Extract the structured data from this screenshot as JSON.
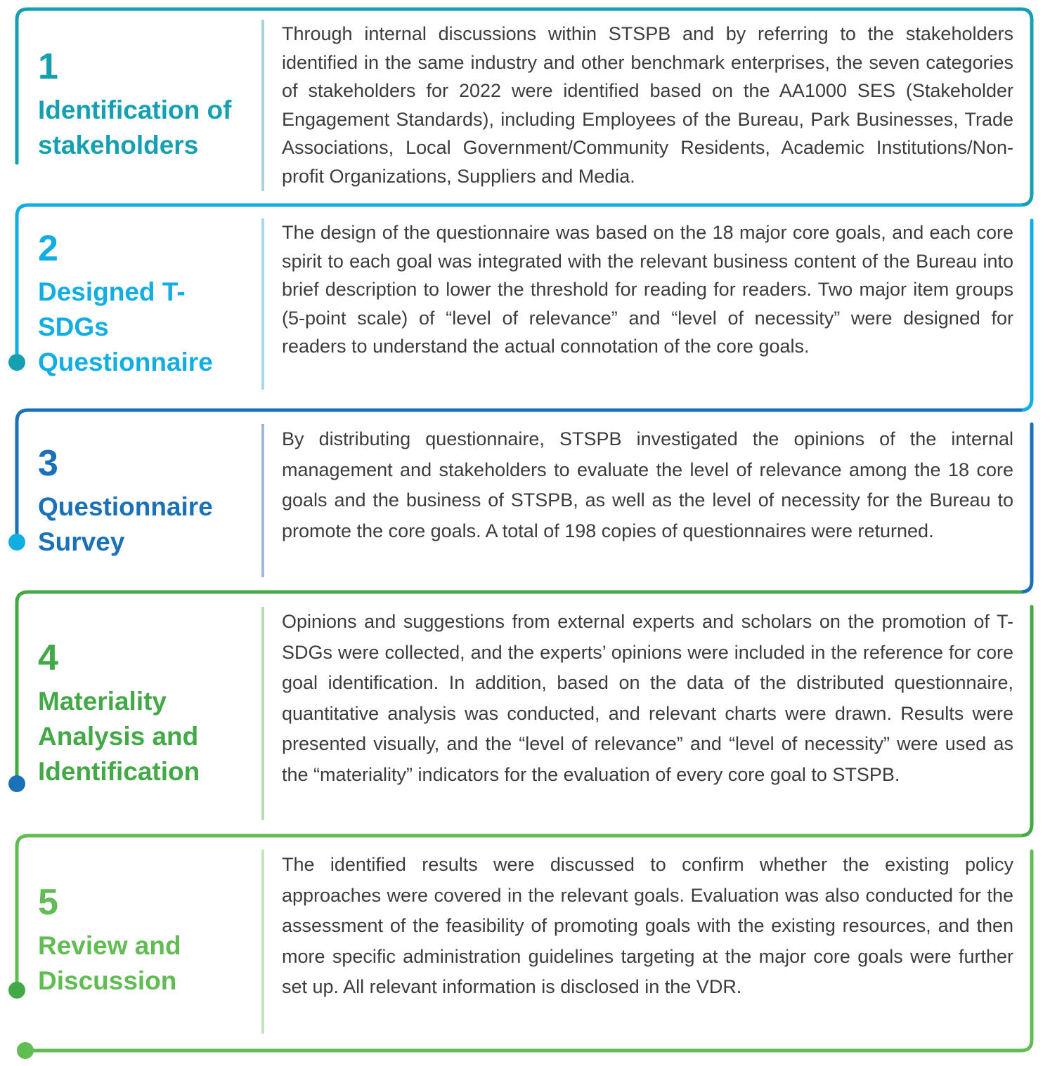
{
  "colors": {
    "step1": "#14a0b0",
    "step2": "#12aee3",
    "step3": "#1b71b7",
    "step4": "#43a947",
    "step5": "#61bd53",
    "body_text": "#3c3c3c"
  },
  "steps": [
    {
      "number": "1",
      "title": "Identification of stakeholders",
      "text": "Through internal discussions within STSPB and by referring to the stakeholders identified in the same industry and other benchmark enterprises, the seven categories of stakeholders for 2022 were identified based on the AA1000 SES (Stakeholder Engagement Standards), including Employees of the Bureau, Park Businesses, Trade Associations, Local Government/Community Residents, Academic Institutions/Non-profit Organizations, Suppliers and Media."
    },
    {
      "number": "2",
      "title": "Designed T-SDGs Questionnaire",
      "text": "The design of the questionnaire was based on the 18 major core goals, and each core spirit to each goal was integrated with the relevant business content of the Bureau into brief description to lower the threshold for reading for readers. Two major item groups (5-point scale) of “level of relevance” and “level of necessity” were designed for readers to understand the actual connotation of the core goals."
    },
    {
      "number": "3",
      "title": "Questionnaire Survey",
      "text": "By distributing questionnaire, STSPB investigated the opinions of the internal management and stakeholders to evaluate the level of relevance among the 18 core goals and the business of STSPB, as well as the level of necessity for the Bureau to promote the core goals. A total of 198 copies of questionnaires were returned."
    },
    {
      "number": "4",
      "title": "Materiality Analysis and Identification",
      "text": "Opinions and suggestions from external experts and scholars on the promotion of T-SDGs were collected, and the experts’ opinions were included in the reference for core goal identification. In addition, based on the data of the distributed questionnaire, quantitative analysis was conducted, and relevant charts were drawn. Results were presented visually, and the “level of relevance” and “level of necessity” were used as the “materiality” indicators for the evaluation of every core goal to STSPB."
    },
    {
      "number": "5",
      "title": "Review and Discussion",
      "text": "The identified results were discussed to confirm whether the existing policy approaches were covered in the relevant goals. Evaluation was also conducted for the assessment of the feasibility of promoting goals with the existing resources, and then more specific administration guidelines targeting at the major core goals were further set up. All relevant information is disclosed in the VDR."
    }
  ]
}
